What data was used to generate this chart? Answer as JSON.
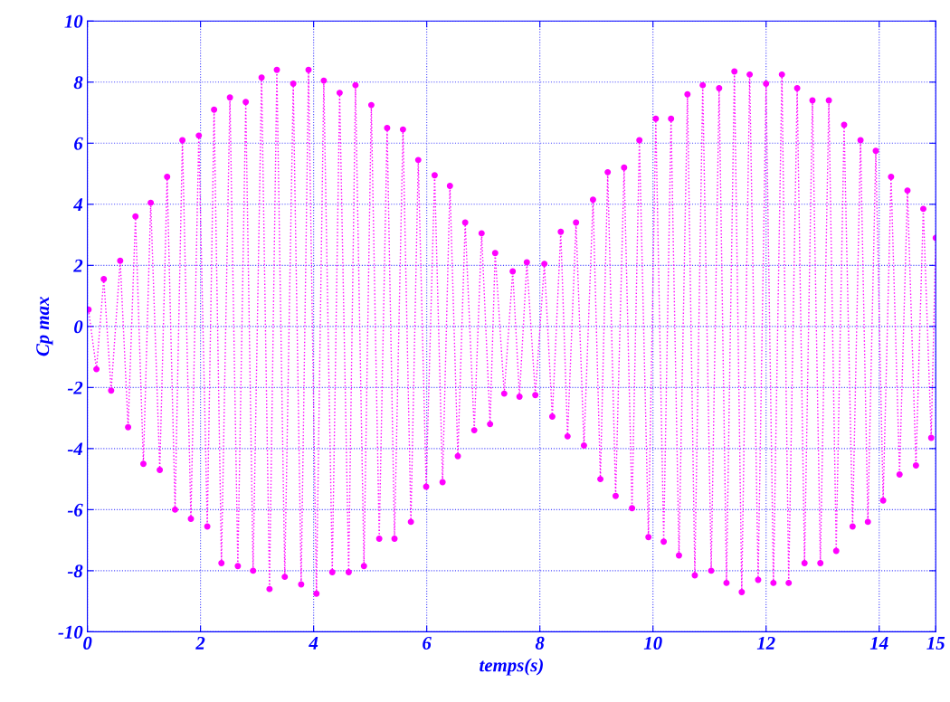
{
  "chart_data": {
    "type": "line",
    "xlabel": "temps(s)",
    "ylabel": "Cp max",
    "x": [
      0.02,
      0.16,
      0.29,
      0.42,
      0.58,
      0.72,
      0.85,
      0.99,
      1.12,
      1.28,
      1.41,
      1.55,
      1.68,
      1.83,
      1.97,
      2.12,
      2.24,
      2.37,
      2.52,
      2.66,
      2.8,
      2.93,
      3.08,
      3.22,
      3.35,
      3.49,
      3.64,
      3.78,
      3.91,
      4.05,
      4.18,
      4.33,
      4.46,
      4.62,
      4.74,
      4.89,
      5.02,
      5.16,
      5.3,
      5.43,
      5.58,
      5.72,
      5.85,
      5.99,
      6.14,
      6.28,
      6.41,
      6.55,
      6.68,
      6.84,
      6.97,
      7.12,
      7.21,
      7.37,
      7.52,
      7.64,
      7.77,
      7.92,
      8.08,
      8.22,
      8.37,
      8.49,
      8.64,
      8.78,
      8.94,
      9.07,
      9.2,
      9.34,
      9.49,
      9.63,
      9.76,
      9.92,
      10.05,
      10.19,
      10.32,
      10.46,
      10.61,
      10.74,
      10.88,
      11.03,
      11.17,
      11.3,
      11.44,
      11.57,
      11.71,
      11.86,
      12.0,
      12.13,
      12.28,
      12.4,
      12.55,
      12.68,
      12.82,
      12.96,
      13.11,
      13.24,
      13.38,
      13.53,
      13.67,
      13.8,
      13.94,
      14.07,
      14.21,
      14.36,
      14.5,
      14.65,
      14.78,
      14.92,
      15.0
    ],
    "series": [
      {
        "color": "#ff00ff",
        "values": [
          0.55,
          -1.4,
          1.55,
          -2.1,
          2.15,
          -3.3,
          3.6,
          -4.5,
          4.05,
          -4.7,
          4.9,
          -6.0,
          6.1,
          -6.3,
          6.25,
          -6.55,
          7.1,
          -7.75,
          7.5,
          -7.85,
          7.35,
          -8.0,
          8.15,
          -8.6,
          8.4,
          -8.2,
          7.95,
          -8.45,
          8.4,
          -8.75,
          8.05,
          -8.05,
          7.65,
          -8.05,
          7.9,
          -7.85,
          7.25,
          -6.95,
          6.5,
          -6.95,
          6.45,
          -6.4,
          5.45,
          -5.25,
          4.95,
          -5.1,
          4.6,
          -4.25,
          3.4,
          -3.4,
          3.05,
          -3.2,
          2.4,
          -2.2,
          1.8,
          -2.3,
          2.1,
          -2.25,
          2.05,
          -2.95,
          3.1,
          -3.6,
          3.4,
          -3.9,
          4.15,
          -5.0,
          5.05,
          -5.55,
          5.2,
          -5.95,
          6.1,
          -6.9,
          6.8,
          -7.05,
          6.8,
          -7.5,
          7.6,
          -8.15,
          7.9,
          -8.0,
          7.8,
          -8.4,
          8.35,
          -8.7,
          8.25,
          -8.3,
          7.95,
          -8.4,
          8.25,
          -8.4,
          7.8,
          -7.75,
          7.4,
          -7.75,
          7.4,
          -7.35,
          6.6,
          -6.55,
          6.1,
          -6.4,
          5.75,
          -5.7,
          4.9,
          -4.85,
          4.45,
          -4.55,
          3.85,
          -3.65,
          2.9
        ]
      }
    ],
    "xlim": [
      0,
      15
    ],
    "ylim": [
      -10,
      10
    ],
    "xticks": [
      0,
      2,
      4,
      6,
      8,
      10,
      12,
      14,
      15
    ],
    "yticks": [
      -10,
      -8,
      -6,
      -4,
      -2,
      0,
      2,
      4,
      6,
      8,
      10
    ],
    "grid": true,
    "marker": "circle",
    "line_style": "dotted",
    "legend": false
  }
}
